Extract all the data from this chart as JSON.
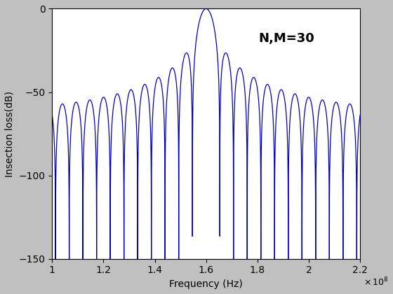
{
  "title": "",
  "xlabel": "Frequency (Hz)",
  "ylabel": "Insection loss(dB)",
  "annotation": "N,M=30",
  "xlim": [
    100000000.0,
    220000000.0
  ],
  "ylim": [
    -150,
    0
  ],
  "xticks": [
    100000000.0,
    120000000.0,
    140000000.0,
    160000000.0,
    180000000.0,
    200000000.0,
    220000000.0
  ],
  "yticks": [
    0,
    -50,
    -100,
    -150
  ],
  "f0": 160000000.0,
  "N": 30,
  "M": 30,
  "line_color": "#0000BB",
  "line_width": 0.9,
  "bg_color": "#C0C0C0",
  "axes_bg_color": "#FFFFFF",
  "num_points": 20000,
  "f_start": 100000000.0,
  "f_end": 220000000.0,
  "annotation_fontsize": 13,
  "label_fontsize": 10,
  "tick_fontsize": 10
}
